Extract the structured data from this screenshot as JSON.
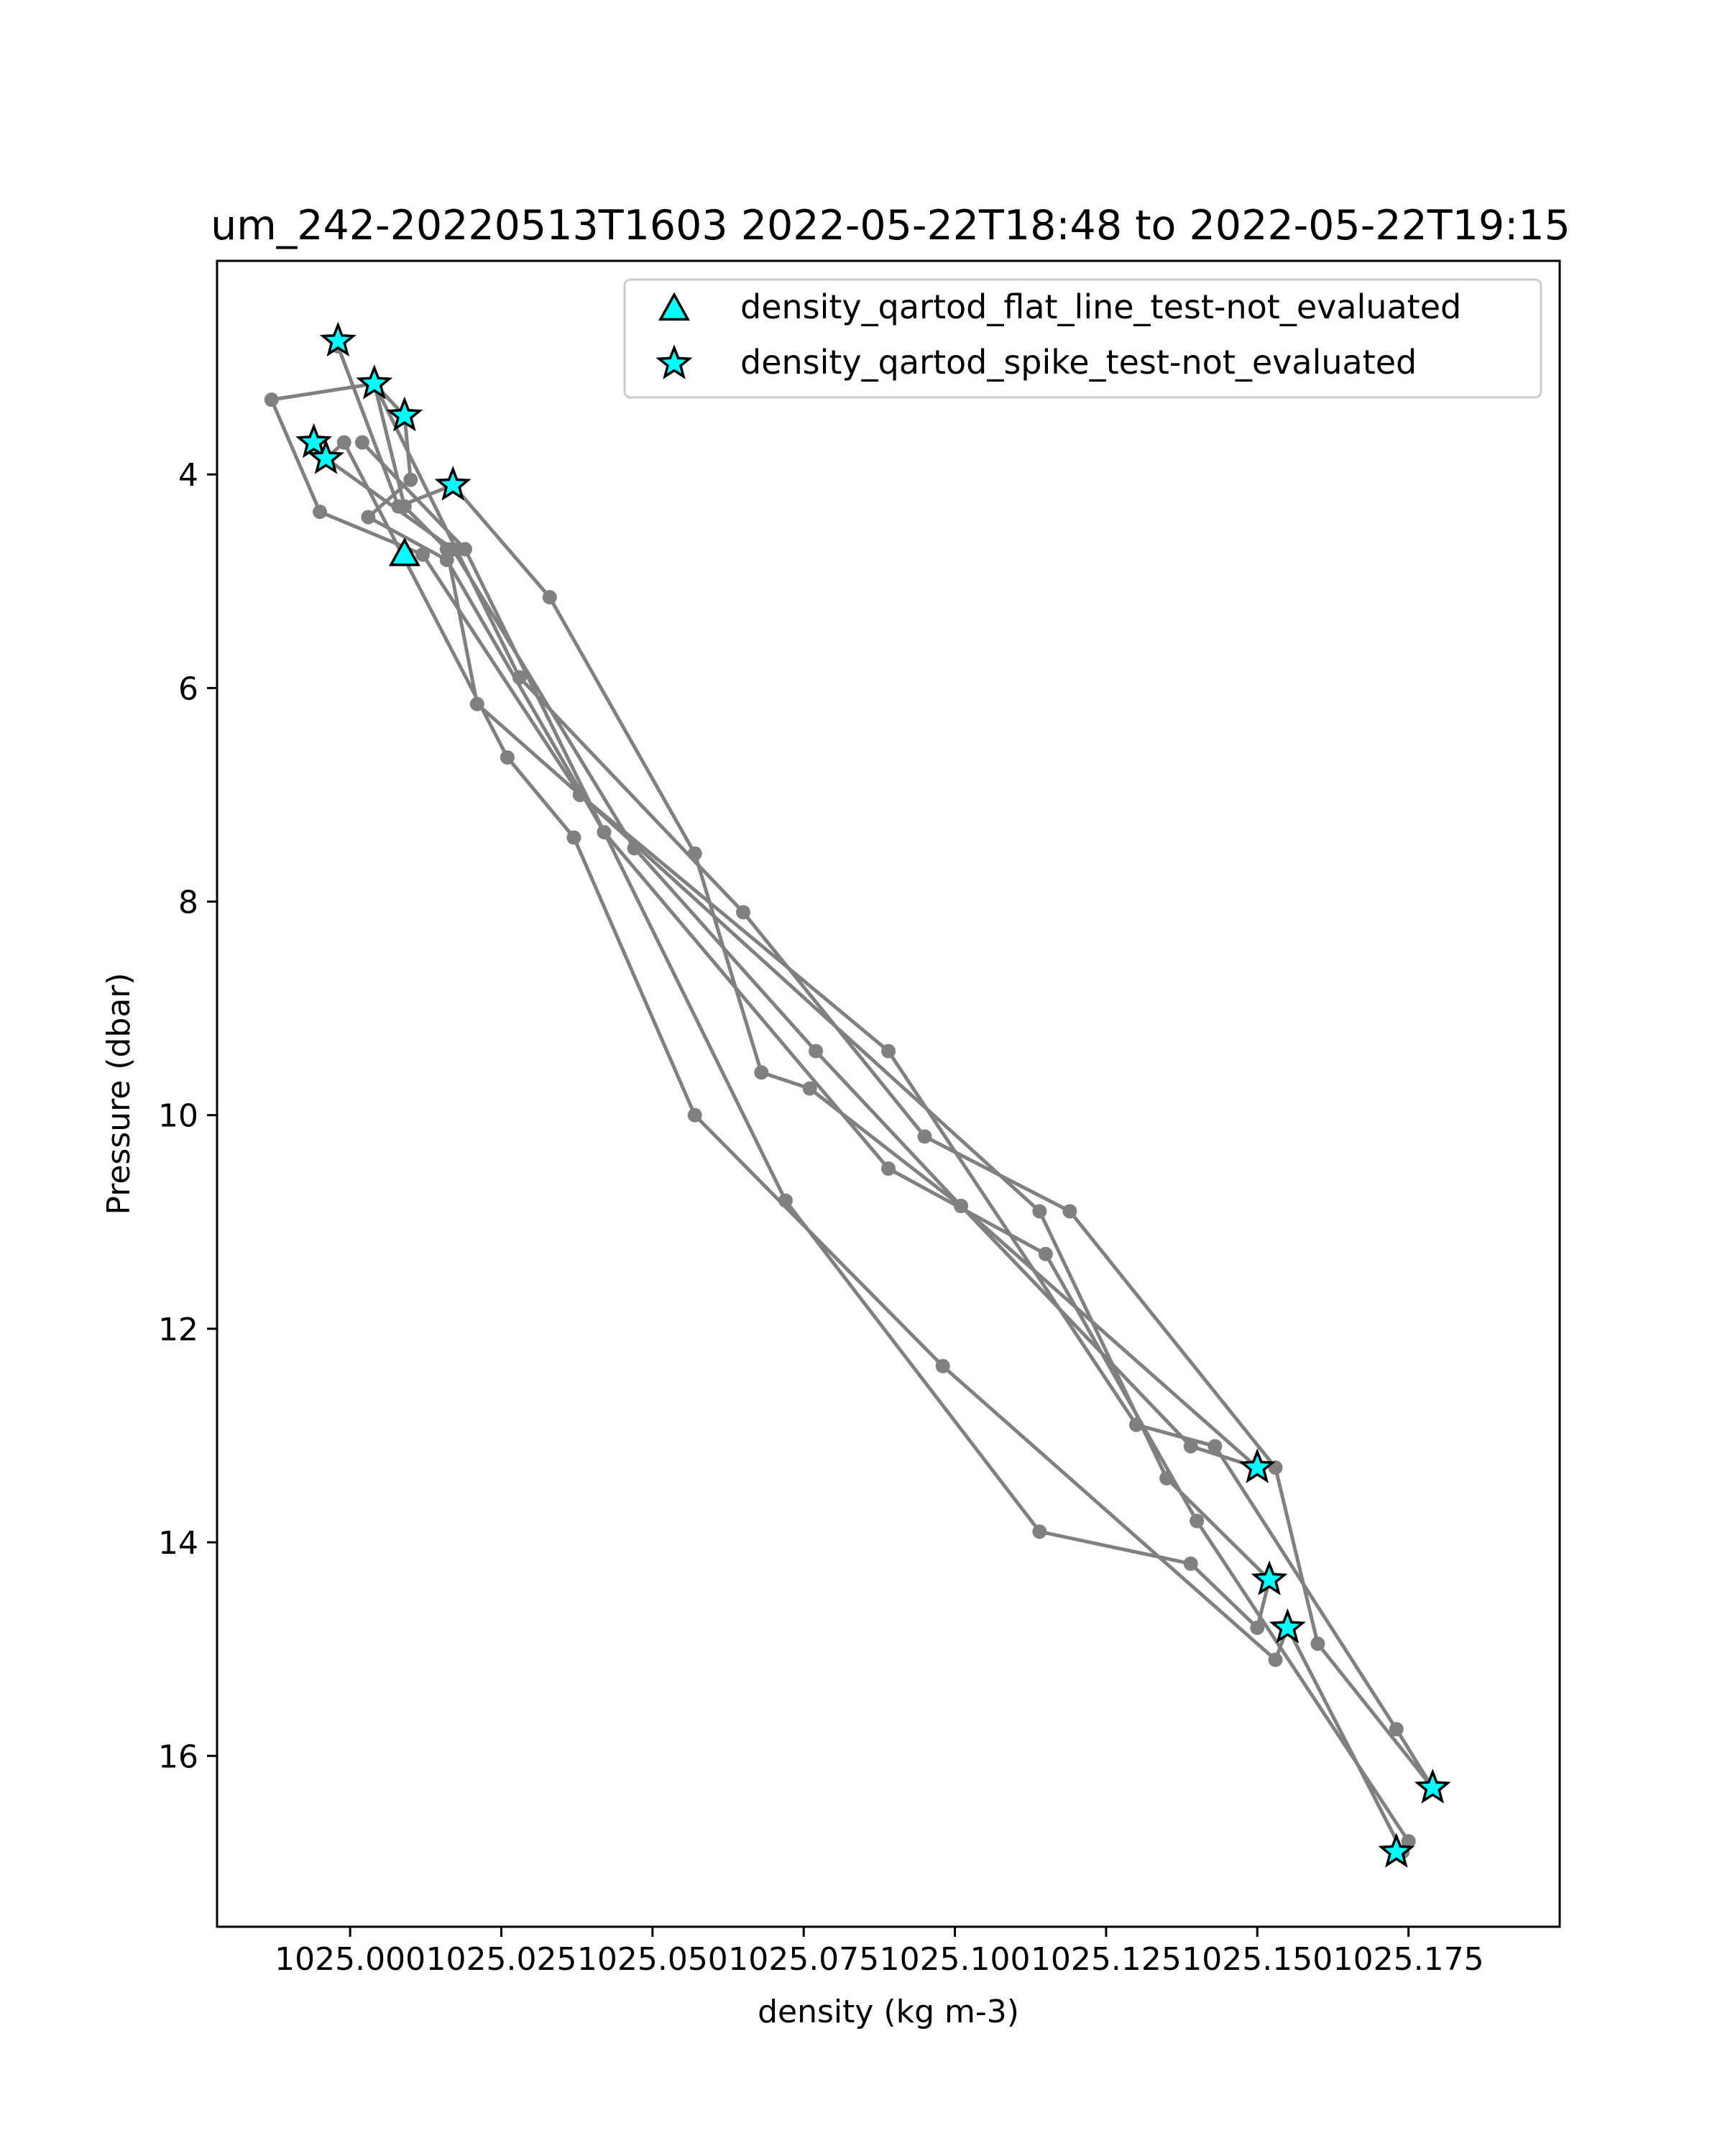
{
  "chart_data": {
    "type": "line",
    "title": "um_242-20220513T1603 2022-05-22T18:48 to 2022-05-22T19:15",
    "xlabel": "density (kg m-3)",
    "ylabel": "Pressure (dbar)",
    "xlim": [
      1024.978,
      1025.2
    ],
    "ylim": [
      17.6,
      2.0
    ],
    "y_inverted": true,
    "grid": false,
    "x_ticks": [
      1025.0,
      1025.025,
      1025.05,
      1025.075,
      1025.1,
      1025.125,
      1025.15,
      1025.175
    ],
    "x_tick_labels": [
      "1025.000",
      "1025.025",
      "1025.050",
      "1025.075",
      "1025.100",
      "1025.125",
      "1025.150",
      "1025.175"
    ],
    "y_ticks": [
      4,
      6,
      8,
      10,
      12,
      14,
      16
    ],
    "y_tick_labels": [
      "4",
      "6",
      "8",
      "10",
      "12",
      "14",
      "16"
    ],
    "legend_position": "upper-right",
    "colors": {
      "profile": "#808080",
      "marker_fill": "#00ffff",
      "marker_edge": "#000000"
    },
    "profile": {
      "x": [
        1024.998,
        1025.008,
        1025.017,
        1025.033,
        1025.057,
        1025.068,
        1025.076,
        1025.101,
        1025.15,
        1025.139,
        1025.101,
        1025.077,
        1025.047,
        1025.017,
        1024.996,
        1024.999,
        1025.026,
        1025.037,
        1025.057,
        1025.098,
        1025.153,
        1025.155,
        1025.174,
        1025.175,
        1025.14,
        1025.115,
        1025.089,
        1025.042,
        1025.016,
        1025.003,
        1025.01,
        1025.009,
        1025.004,
        1025.028,
        1025.065,
        1025.095,
        1025.119,
        1025.153,
        1025.16,
        1025.179,
        1025.173,
        1025.143,
        1025.13,
        1025.089,
        1025.038,
        1025.012,
        1024.995,
        1024.987,
        1025.004,
        1025.009,
        1025.016,
        1025.021,
        1025.038,
        1025.114,
        1025.135,
        1025.152,
        1025.15,
        1025.139,
        1025.114,
        1025.072,
        1025.019,
        1025.002
      ],
      "y": [
        2.8,
        4.3,
        4.1,
        5.15,
        7.55,
        9.6,
        9.75,
        10.85,
        13.3,
        13.1,
        10.85,
        9.4,
        7.5,
        4.7,
        3.85,
        3.7,
        6.65,
        7.4,
        10.0,
        12.35,
        15.1,
        14.8,
        16.9,
        16.8,
        13.8,
        11.3,
        10.5,
        7.35,
        4.8,
        4.4,
        4.05,
        3.45,
        3.15,
        5.9,
        8.1,
        10.2,
        10.9,
        13.3,
        14.95,
        16.3,
        15.75,
        13.1,
        12.9,
        9.4,
        7.0,
        4.75,
        4.35,
        3.3,
        3.15,
        4.3,
        4.7,
        6.15,
        7.0,
        10.9,
        13.4,
        14.35,
        14.8,
        14.2,
        13.9,
        10.8,
        4.7,
        3.7
      ]
    },
    "series": [
      {
        "name": "density_qartod_flat_line_test-not_evaluated",
        "marker": "triangle",
        "x": [
          1025.009
        ],
        "y": [
          4.75
        ]
      },
      {
        "name": "density_qartod_spike_test-not_evaluated",
        "marker": "star",
        "x": [
          1024.998,
          1025.004,
          1025.009,
          1025.017,
          1024.994,
          1024.996,
          1025.15,
          1025.152,
          1025.155,
          1025.179,
          1025.173
        ],
        "y": [
          2.75,
          3.15,
          3.45,
          4.1,
          3.7,
          3.85,
          13.3,
          14.35,
          14.8,
          16.3,
          16.9
        ]
      }
    ]
  }
}
